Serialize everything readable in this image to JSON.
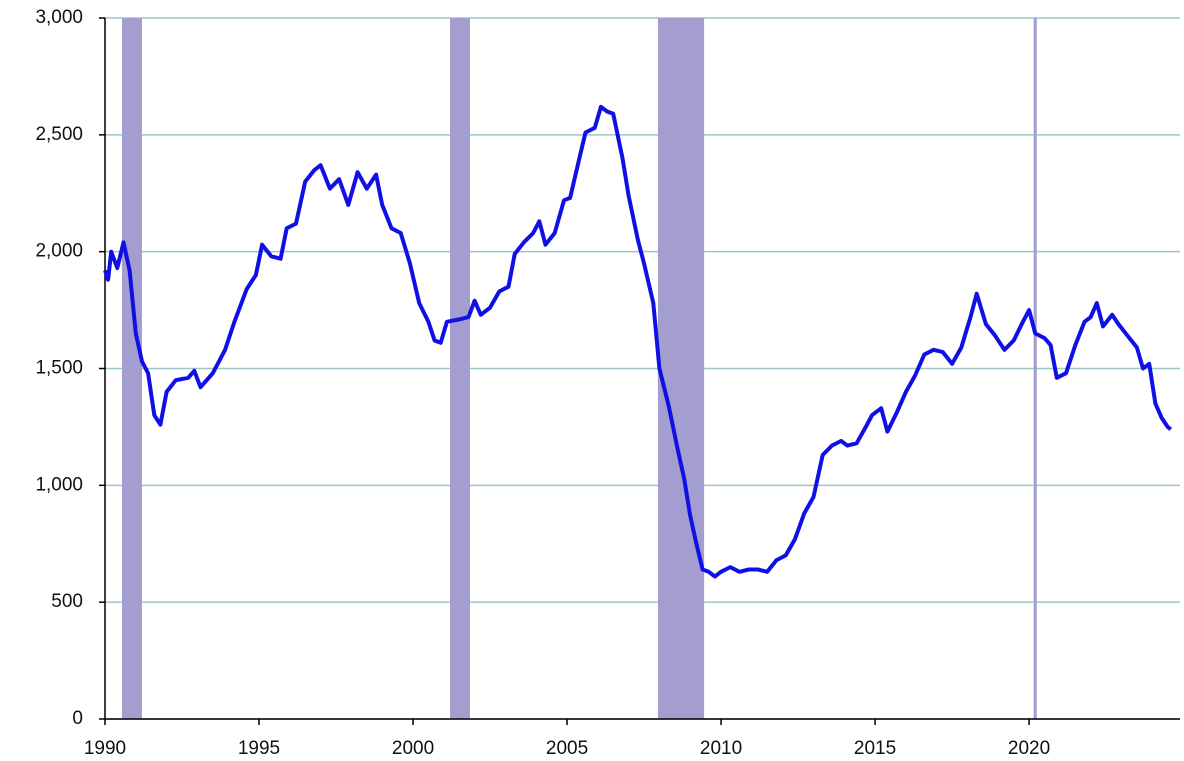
{
  "chart_data": {
    "type": "line",
    "x": [
      1990.0,
      1990.1,
      1990.2,
      1990.4,
      1990.6,
      1990.8,
      1991.0,
      1991.2,
      1991.4,
      1991.6,
      1991.8,
      1992.0,
      1992.3,
      1992.7,
      1992.9,
      1993.1,
      1993.5,
      1993.9,
      1994.2,
      1994.6,
      1994.9,
      1995.1,
      1995.4,
      1995.7,
      1995.9,
      1996.2,
      1996.5,
      1996.8,
      1997.0,
      1997.3,
      1997.6,
      1997.9,
      1998.2,
      1998.5,
      1998.8,
      1999.0,
      1999.3,
      1999.6,
      1999.9,
      2000.2,
      2000.5,
      2000.7,
      2000.9,
      2001.1,
      2001.5,
      2001.8,
      2002.0,
      2002.2,
      2002.5,
      2002.8,
      2003.1,
      2003.3,
      2003.6,
      2003.9,
      2004.1,
      2004.3,
      2004.6,
      2004.9,
      2005.1,
      2005.4,
      2005.6,
      2005.9,
      2006.1,
      2006.3,
      2006.5,
      2006.8,
      2007.0,
      2007.3,
      2007.5,
      2007.8,
      2008.0,
      2008.3,
      2008.6,
      2008.8,
      2009.0,
      2009.2,
      2009.4,
      2009.6,
      2009.8,
      2010.0,
      2010.3,
      2010.6,
      2010.9,
      2011.2,
      2011.5,
      2011.8,
      2012.1,
      2012.4,
      2012.7,
      2013.0,
      2013.3,
      2013.6,
      2013.9,
      2014.1,
      2014.4,
      2014.7,
      2014.9,
      2015.2,
      2015.4,
      2015.7,
      2016.0,
      2016.3,
      2016.6,
      2016.9,
      2017.2,
      2017.5,
      2017.8,
      2018.1,
      2018.3,
      2018.6,
      2018.9,
      2019.2,
      2019.5,
      2019.8,
      2020.0,
      2020.2,
      2020.5,
      2020.7,
      2020.9,
      2021.2,
      2021.5,
      2021.8,
      2022.0,
      2022.2,
      2022.4,
      2022.7,
      2022.9,
      2023.2,
      2023.5,
      2023.7,
      2023.9,
      2024.1,
      2024.3,
      2024.5,
      2024.6
    ],
    "series": [
      {
        "color": "#1010e6",
        "values": [
          1920,
          1880,
          2000,
          1930,
          2040,
          1920,
          1650,
          1530,
          1480,
          1300,
          1260,
          1400,
          1450,
          1460,
          1490,
          1420,
          1480,
          1580,
          1700,
          1840,
          1900,
          2030,
          1980,
          1970,
          2100,
          2120,
          2300,
          2350,
          2370,
          2270,
          2310,
          2200,
          2340,
          2270,
          2330,
          2200,
          2100,
          2080,
          1950,
          1780,
          1700,
          1620,
          1610,
          1700,
          1710,
          1720,
          1790,
          1730,
          1760,
          1830,
          1850,
          1990,
          2040,
          2080,
          2130,
          2030,
          2080,
          2220,
          2230,
          2400,
          2510,
          2530,
          2620,
          2600,
          2590,
          2400,
          2240,
          2050,
          1950,
          1780,
          1500,
          1340,
          1150,
          1030,
          870,
          750,
          640,
          630,
          610,
          630,
          650,
          630,
          640,
          640,
          630,
          680,
          700,
          770,
          880,
          950,
          1130,
          1170,
          1190,
          1170,
          1180,
          1250,
          1300,
          1330,
          1230,
          1310,
          1400,
          1470,
          1560,
          1580,
          1570,
          1520,
          1590,
          1720,
          1820,
          1690,
          1640,
          1580,
          1620,
          1700,
          1750,
          1650,
          1630,
          1600,
          1460,
          1480,
          1600,
          1700,
          1720,
          1780,
          1680,
          1730,
          1690,
          1640,
          1590,
          1500,
          1520,
          1350,
          1290,
          1250,
          1240
        ]
      }
    ],
    "recessions": [
      [
        1990.55,
        1991.2
      ],
      [
        2001.2,
        2001.85
      ],
      [
        2007.95,
        2009.45
      ],
      [
        2020.15,
        2020.25
      ]
    ],
    "recession_color": "#a49dd0",
    "xlim": [
      1990,
      2024.9
    ],
    "xticks": [
      1990,
      1995,
      2000,
      2005,
      2010,
      2015,
      2020
    ],
    "ylim": [
      0,
      3000
    ],
    "yticks": [
      0,
      500,
      {
        "value": 1000,
        "label": "1,000"
      },
      {
        "value": 1500,
        "label": "1,500"
      },
      {
        "value": 2000,
        "label": "2,000"
      },
      {
        "value": 2500,
        "label": "2,500"
      },
      {
        "value": 3000,
        "label": "3,000"
      }
    ],
    "grid": true
  }
}
